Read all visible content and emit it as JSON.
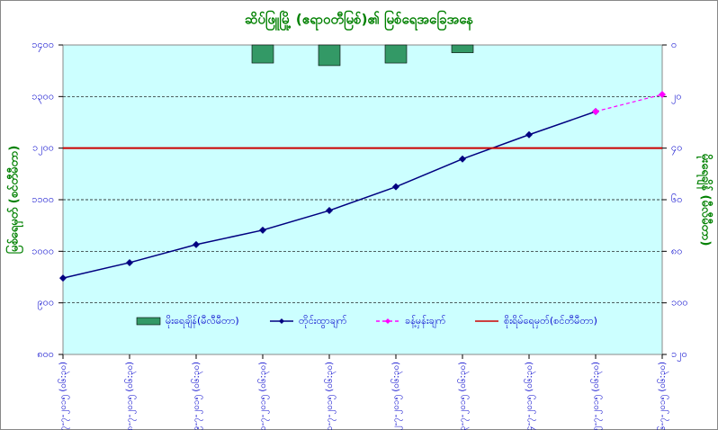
{
  "chart_data": {
    "type": "line",
    "title": "ဆိပ်ဖြူမြို့ (ဧရာဝတီမြစ်)၏ မြစ်ရေအခြေအနေ",
    "ylabel": "မြစ်ရေမှတ် (စင်တီမီတာ)",
    "y2label": "မိုးရေချိန် (မီလီမီတာ)",
    "categories": [
      "၇-၇-၂၀၁၅ (၀၆:၃၀)",
      "၈-၇-၂၀၁၅ (၀၆:၃၀)",
      "၉-၇-၂၀၁၅ (၀၆:၃၀)",
      "၁၀-၇-၂၀၁၅ (၀၆:၃၀)",
      "၁၁-၇-၂၀၁၅ (၀၆:၃၀)",
      "၁၂-၇-၂၀၁၅ (၀၆:၃၀)",
      "၁၃-၇-၂၀၁၅ (၀၆:၃၀)",
      "၁၄-၇-၂၀၁၅ (၀၆:၃၀)",
      "၁၅-၇-၂၀၁၅ (၀၆:၃၀)",
      "၁၆-၇-၂၀၁၅ (၀၆:၃၀)"
    ],
    "series": [
      {
        "name": "မိုးရေချိန်(မီလီမီတာ)",
        "type": "bar",
        "axis": "y2",
        "color": "#339966",
        "values": [
          0,
          0,
          0,
          7,
          8,
          7,
          3,
          0,
          0,
          0
        ]
      },
      {
        "name": "တိုင်းထွာချက်",
        "type": "line",
        "color": "#000080",
        "values": [
          948,
          978,
          1013,
          1041,
          1079,
          1125,
          1179,
          1226,
          1271,
          null
        ]
      },
      {
        "name": "ခန့်မှန်းချက်",
        "type": "dashed",
        "color": "#ff00ff",
        "values": [
          null,
          null,
          null,
          null,
          null,
          null,
          null,
          null,
          1271,
          1304
        ]
      },
      {
        "name": "စိုးရိမ်ရေမှတ်(စင်တီမီတာ)",
        "type": "hline",
        "color": "#cc0000",
        "value": 1200
      }
    ],
    "ylim": [
      800,
      1400
    ],
    "yticks": [
      {
        "value": 800,
        "label": "၈၀၀"
      },
      {
        "value": 900,
        "label": "၉၀၀"
      },
      {
        "value": 1000,
        "label": "၁၀၀၀"
      },
      {
        "value": 1100,
        "label": "၁၁၀၀"
      },
      {
        "value": 1200,
        "label": "၁၂၀၀"
      },
      {
        "value": 1300,
        "label": "၁၃၀၀"
      },
      {
        "value": 1400,
        "label": "၁၄၀၀"
      }
    ],
    "y2lim": [
      0,
      120
    ],
    "y2_inverted": true,
    "y2ticks": [
      {
        "value": 0,
        "label": "၀"
      },
      {
        "value": 20,
        "label": "၂၀"
      },
      {
        "value": 40,
        "label": "၄၀"
      },
      {
        "value": 60,
        "label": "၆၀"
      },
      {
        "value": 80,
        "label": "၈၀"
      },
      {
        "value": 100,
        "label": "၁၀၀"
      },
      {
        "value": 120,
        "label": "၁၂၀"
      }
    ],
    "grid": true
  }
}
